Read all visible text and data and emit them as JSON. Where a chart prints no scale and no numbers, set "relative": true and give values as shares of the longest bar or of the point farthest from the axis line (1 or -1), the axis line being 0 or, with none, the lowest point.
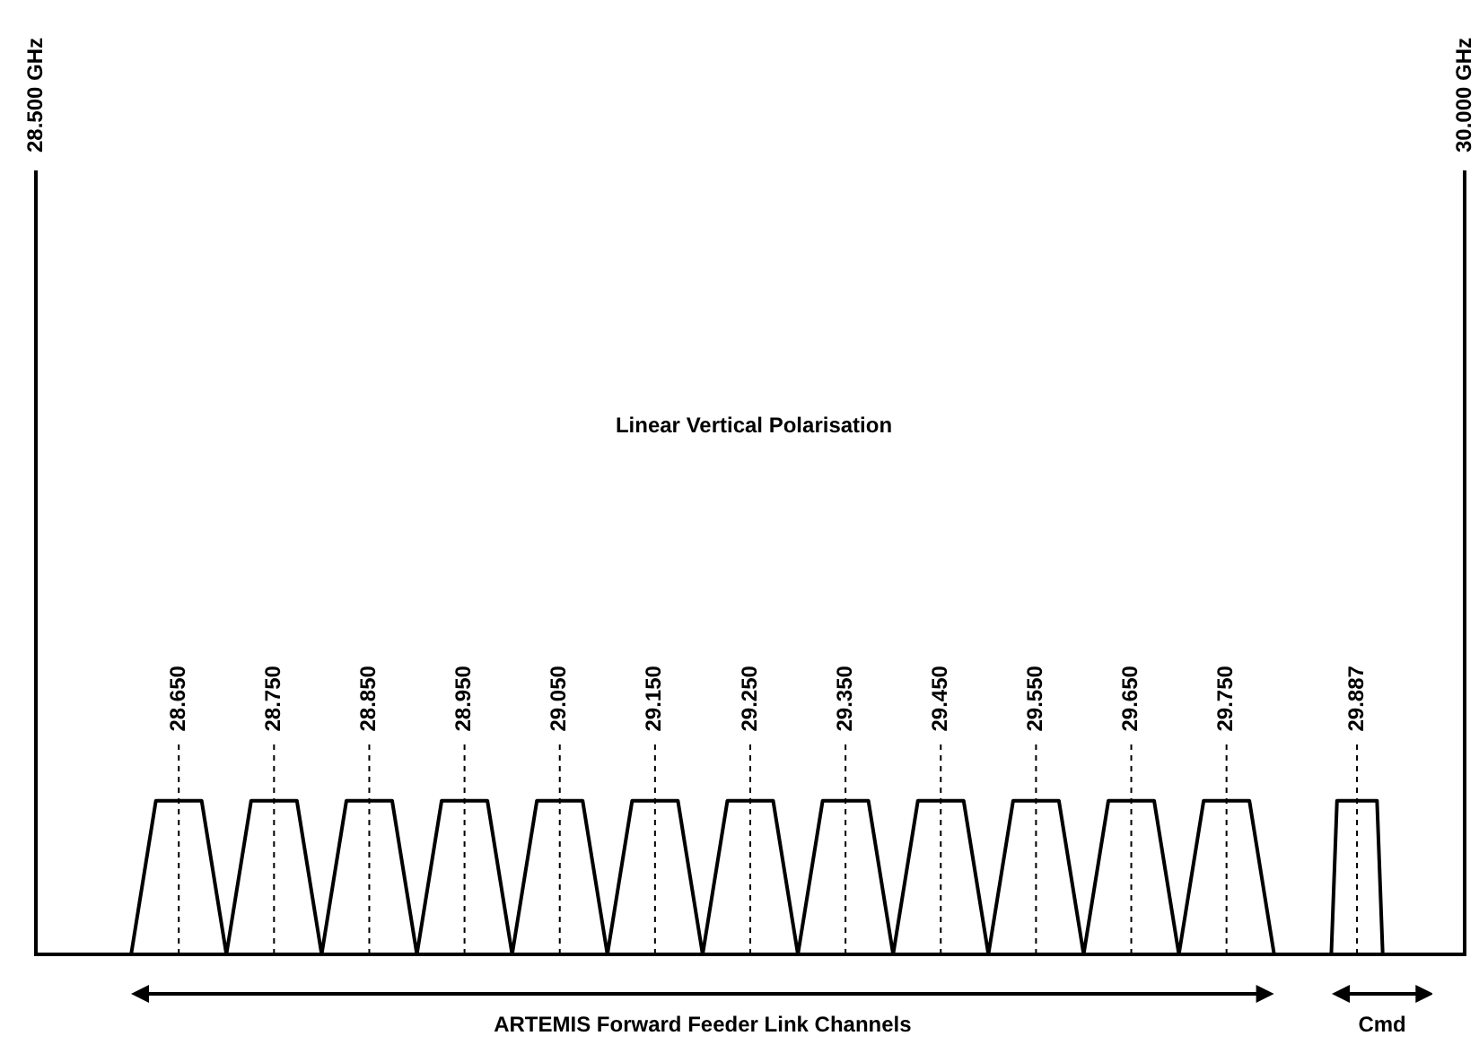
{
  "chart_data": {
    "type": "line",
    "relative": true,
    "xlim": [
      28.5,
      30.0
    ],
    "xticks": [
      {
        "value": 28.65,
        "label": "28.650"
      },
      {
        "value": 28.75,
        "label": "28.750"
      },
      {
        "value": 28.85,
        "label": "28.850"
      },
      {
        "value": 28.95,
        "label": "28.950"
      },
      {
        "value": 29.05,
        "label": "29.050"
      },
      {
        "value": 29.15,
        "label": "29.150"
      },
      {
        "value": 29.25,
        "label": "29.250"
      },
      {
        "value": 29.35,
        "label": "29.350"
      },
      {
        "value": 29.45,
        "label": "29.450"
      },
      {
        "value": 29.55,
        "label": "29.550"
      },
      {
        "value": 29.65,
        "label": "29.650"
      },
      {
        "value": 29.75,
        "label": "29.750"
      },
      {
        "value": 29.887,
        "label": "29.887"
      }
    ],
    "legend": false,
    "marker": "none",
    "line_style": "solid",
    "series": [
      {
        "color": "#000000",
        "x": [
          28.6,
          28.626,
          28.674,
          28.7,
          28.726,
          28.774,
          28.8,
          28.826,
          28.874,
          28.9,
          28.926,
          28.974,
          29.0,
          29.026,
          29.074,
          29.1,
          29.126,
          29.174,
          29.2,
          29.226,
          29.274,
          29.3,
          29.326,
          29.374,
          29.4,
          29.426,
          29.474,
          29.5,
          29.526,
          29.574,
          29.6,
          29.626,
          29.674,
          29.7,
          29.726,
          29.774,
          29.8
        ],
        "values": [
          0,
          1,
          1,
          0,
          1,
          1,
          0,
          1,
          1,
          0,
          1,
          1,
          0,
          1,
          1,
          0,
          1,
          1,
          0,
          1,
          1,
          0,
          1,
          1,
          0,
          1,
          1,
          0,
          1,
          1,
          0,
          1,
          1,
          0,
          1,
          1,
          0
        ]
      },
      {
        "color": "#000000",
        "x": [
          29.86,
          29.866,
          29.908,
          29.914
        ],
        "values": [
          0,
          1,
          1,
          0
        ]
      }
    ],
    "ref_lines": [
      {
        "axis": "x",
        "value": 28.65,
        "line_style": "dashed"
      },
      {
        "axis": "x",
        "value": 28.75,
        "line_style": "dashed"
      },
      {
        "axis": "x",
        "value": 28.85,
        "line_style": "dashed"
      },
      {
        "axis": "x",
        "value": 28.95,
        "line_style": "dashed"
      },
      {
        "axis": "x",
        "value": 29.05,
        "line_style": "dashed"
      },
      {
        "axis": "x",
        "value": 29.15,
        "line_style": "dashed"
      },
      {
        "axis": "x",
        "value": 29.25,
        "line_style": "dashed"
      },
      {
        "axis": "x",
        "value": 29.35,
        "line_style": "dashed"
      },
      {
        "axis": "x",
        "value": 29.45,
        "line_style": "dashed"
      },
      {
        "axis": "x",
        "value": 29.55,
        "line_style": "dashed"
      },
      {
        "axis": "x",
        "value": 29.65,
        "line_style": "dashed"
      },
      {
        "axis": "x",
        "value": 29.75,
        "line_style": "dashed"
      },
      {
        "axis": "x",
        "value": 29.887,
        "line_style": "dashed"
      }
    ],
    "annotations": [
      "Linear Vertical Polarisation",
      "ARTEMIS Forward Feeder Link Channels",
      "Cmd",
      "28.500 GHz",
      "30.000 GHz"
    ]
  }
}
